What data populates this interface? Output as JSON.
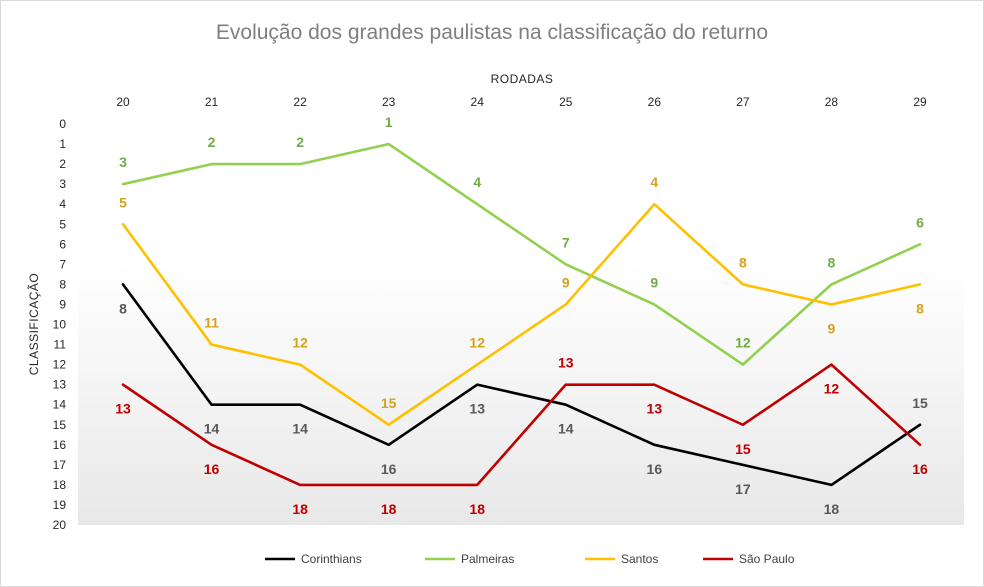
{
  "chart_data": {
    "type": "line",
    "title": "Evolução dos grandes paulistas na classificação do returno",
    "xlabel": "RODADAS",
    "ylabel": "CLASSIFICAÇÃO",
    "x": [
      20,
      21,
      22,
      23,
      24,
      25,
      26,
      27,
      28,
      29
    ],
    "x_tick_labels": [
      "20",
      "21",
      "22",
      "23",
      "24",
      "25",
      "26",
      "27",
      "28",
      "29"
    ],
    "ylim": [
      0,
      20
    ],
    "y_inverted": true,
    "y_tick_labels": [
      "0",
      "1",
      "2",
      "3",
      "4",
      "5",
      "6",
      "7",
      "8",
      "9",
      "10",
      "11",
      "12",
      "13",
      "14",
      "15",
      "16",
      "17",
      "18",
      "19",
      "20"
    ],
    "x_axis_position": "top",
    "grid": false,
    "legend_position": "bottom",
    "series": [
      {
        "name": "Corinthians",
        "color": "#000000",
        "label_color": "#595959",
        "values": [
          8,
          14,
          14,
          16,
          13,
          14,
          16,
          17,
          18,
          15
        ],
        "labels": [
          "8",
          "14",
          "14",
          "16",
          "13",
          "14",
          "16",
          "17",
          "18",
          "15"
        ],
        "label_pos": [
          "below",
          "below",
          "below",
          "below",
          "below",
          "below",
          "below",
          "below",
          "below",
          "above"
        ]
      },
      {
        "name": "Palmeiras",
        "color": "#92d050",
        "label_color": "#70ad47",
        "values": [
          3,
          2,
          2,
          1,
          4,
          7,
          9,
          12,
          8,
          6
        ],
        "labels": [
          "3",
          "2",
          "2",
          "1",
          "4",
          "7",
          "9",
          "12",
          "8",
          "6"
        ],
        "label_pos": [
          "above",
          "above",
          "above",
          "above",
          "above",
          "above",
          "above",
          "above",
          "above",
          "above"
        ]
      },
      {
        "name": "Santos",
        "color": "#ffc000",
        "label_color": "#d6a21c",
        "values": [
          5,
          11,
          12,
          15,
          12,
          9,
          4,
          8,
          9,
          8
        ],
        "labels": [
          "5",
          "11",
          "12",
          "15",
          "12",
          "9",
          "4",
          "8",
          "9",
          "8"
        ],
        "label_pos": [
          "above",
          "above",
          "above",
          "above",
          "above",
          "above",
          "above",
          "above",
          "below",
          "below"
        ]
      },
      {
        "name": "São Paulo",
        "color": "#c00000",
        "label_color": "#c00000",
        "values": [
          13,
          16,
          18,
          18,
          18,
          13,
          13,
          15,
          12,
          16
        ],
        "labels": [
          "13",
          "16",
          "18",
          "18",
          "18",
          "13",
          "13",
          "15",
          "12",
          "16"
        ],
        "label_pos": [
          "below",
          "below",
          "below",
          "below",
          "below",
          "above",
          "below",
          "below",
          "below",
          "below"
        ]
      }
    ]
  }
}
